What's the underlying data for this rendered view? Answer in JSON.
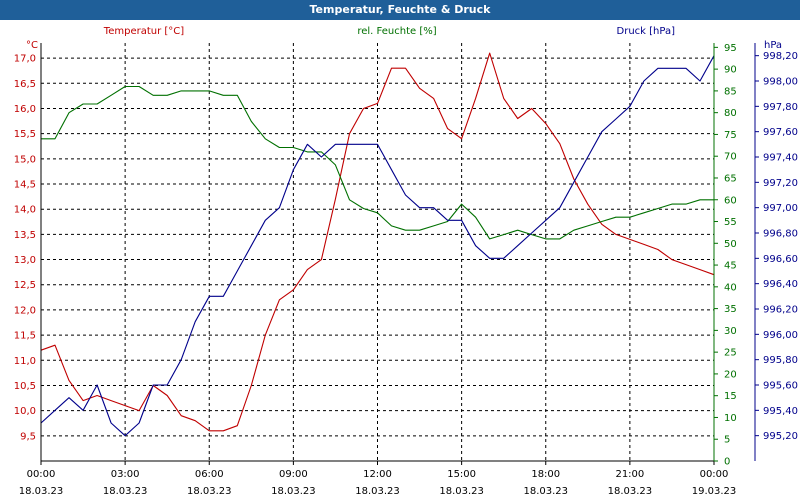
{
  "window": {
    "title": "Temperatur, Feuchte & Druck"
  },
  "chart_data": {
    "type": "line",
    "title": "Temperatur, Feuchte & Druck",
    "colors": {
      "temperature": "#c00000",
      "humidity": "#007000",
      "pressure": "#00008b",
      "grid": "#000000"
    },
    "grid": true,
    "x_ticks": [
      {
        "time": "00:00",
        "date": "18.03.23"
      },
      {
        "time": "03:00",
        "date": "18.03.23"
      },
      {
        "time": "06:00",
        "date": "18.03.23"
      },
      {
        "time": "09:00",
        "date": "18.03.23"
      },
      {
        "time": "12:00",
        "date": "18.03.23"
      },
      {
        "time": "15:00",
        "date": "18.03.23"
      },
      {
        "time": "18:00",
        "date": "18.03.23"
      },
      {
        "time": "21:00",
        "date": "18.03.23"
      },
      {
        "time": "00:00",
        "date": "19.03.23"
      }
    ],
    "axes": {
      "temperature": {
        "label": "Temperatur [°C]",
        "unit": "°C",
        "range": [
          9.0,
          17.3
        ],
        "ticks": [
          "9,5",
          "10,0",
          "10,5",
          "11,0",
          "11,5",
          "12,0",
          "12,5",
          "13,0",
          "13,5",
          "14,0",
          "14,5",
          "15,0",
          "15,5",
          "16,0",
          "16,5",
          "17,0"
        ]
      },
      "humidity": {
        "label": "rel. Feuchte [%]",
        "unit": "%",
        "range": [
          0,
          96
        ],
        "ticks": [
          "0",
          "5",
          "10",
          "15",
          "20",
          "25",
          "30",
          "35",
          "40",
          "45",
          "50",
          "55",
          "60",
          "65",
          "70",
          "75",
          "80",
          "85",
          "90",
          "95"
        ]
      },
      "pressure": {
        "label": "Druck [hPa]",
        "unit": "hPa",
        "range": [
          995.0,
          998.3
        ],
        "ticks": [
          "995,20",
          "995,40",
          "995,60",
          "995,80",
          "996,00",
          "996,20",
          "996,40",
          "996,60",
          "996,80",
          "997,00",
          "997,20",
          "997,40",
          "997,60",
          "997,80",
          "998,00",
          "998,20"
        ]
      }
    },
    "series": [
      {
        "name": "Temperatur [°C]",
        "axis": "temperature",
        "x": [
          0,
          0.5,
          1,
          1.5,
          2,
          2.5,
          3,
          3.5,
          4,
          4.5,
          5,
          5.5,
          6,
          6.5,
          7,
          7.5,
          8,
          8.5,
          9,
          9.5,
          10,
          10.5,
          11,
          11.5,
          12,
          12.5,
          13,
          13.5,
          14,
          14.5,
          15,
          15.5,
          16,
          16.5,
          17,
          17.5,
          18,
          18.5,
          19,
          19.5,
          20,
          20.5,
          21,
          21.5,
          22,
          22.5,
          23,
          23.5,
          24
        ],
        "values": [
          11.2,
          11.3,
          10.6,
          10.2,
          10.3,
          10.2,
          10.1,
          10.0,
          10.5,
          10.3,
          9.9,
          9.8,
          9.6,
          9.6,
          9.7,
          10.5,
          11.5,
          12.2,
          12.4,
          12.8,
          13.0,
          14.2,
          15.5,
          16.0,
          16.1,
          16.8,
          16.8,
          16.4,
          16.2,
          15.6,
          15.4,
          16.2,
          17.1,
          16.2,
          15.8,
          16.0,
          15.7,
          15.3,
          14.6,
          14.1,
          13.7,
          13.5,
          13.4,
          13.3,
          13.2,
          13.0,
          12.9,
          12.8,
          12.7
        ]
      },
      {
        "name": "rel. Feuchte [%]",
        "axis": "humidity",
        "x": [
          0,
          0.5,
          1,
          1.5,
          2,
          2.5,
          3,
          3.5,
          4,
          4.5,
          5,
          5.5,
          6,
          6.5,
          7,
          7.5,
          8,
          8.5,
          9,
          9.5,
          10,
          10.5,
          11,
          11.5,
          12,
          12.5,
          13,
          13.5,
          14,
          14.5,
          15,
          15.5,
          16,
          16.5,
          17,
          17.5,
          18,
          18.5,
          19,
          19.5,
          20,
          20.5,
          21,
          21.5,
          22,
          22.5,
          23,
          23.5,
          24
        ],
        "values": [
          74,
          74,
          80,
          82,
          82,
          84,
          86,
          86,
          84,
          84,
          85,
          85,
          85,
          84,
          84,
          78,
          74,
          72,
          72,
          71,
          71,
          68,
          60,
          58,
          57,
          54,
          53,
          53,
          54,
          55,
          59,
          56,
          51,
          52,
          53,
          52,
          51,
          51,
          53,
          54,
          55,
          56,
          56,
          57,
          58,
          59,
          59,
          60,
          60
        ]
      },
      {
        "name": "Druck [hPa]",
        "axis": "pressure",
        "x": [
          0,
          0.5,
          1,
          1.5,
          2,
          2.5,
          3,
          3.5,
          4,
          4.5,
          5,
          5.5,
          6,
          6.5,
          7,
          7.5,
          8,
          8.5,
          9,
          9.5,
          10,
          10.5,
          11,
          11.5,
          12,
          12.5,
          13,
          13.5,
          14,
          14.5,
          15,
          15.5,
          16,
          16.5,
          17,
          17.5,
          18,
          18.5,
          19,
          19.5,
          20,
          20.5,
          21,
          21.5,
          22,
          22.5,
          23,
          23.5,
          24
        ],
        "values": [
          995.3,
          995.4,
          995.5,
          995.4,
          995.6,
          995.3,
          995.2,
          995.3,
          995.6,
          995.6,
          995.8,
          996.1,
          996.3,
          996.3,
          996.5,
          996.7,
          996.9,
          997.0,
          997.3,
          997.5,
          997.4,
          997.5,
          997.5,
          997.5,
          997.5,
          997.3,
          997.1,
          997.0,
          997.0,
          996.9,
          996.9,
          996.7,
          996.6,
          996.6,
          996.7,
          996.8,
          996.9,
          997.0,
          997.2,
          997.4,
          997.6,
          997.7,
          997.8,
          998.0,
          998.1,
          998.1,
          998.1,
          998.0,
          998.2
        ]
      }
    ]
  }
}
